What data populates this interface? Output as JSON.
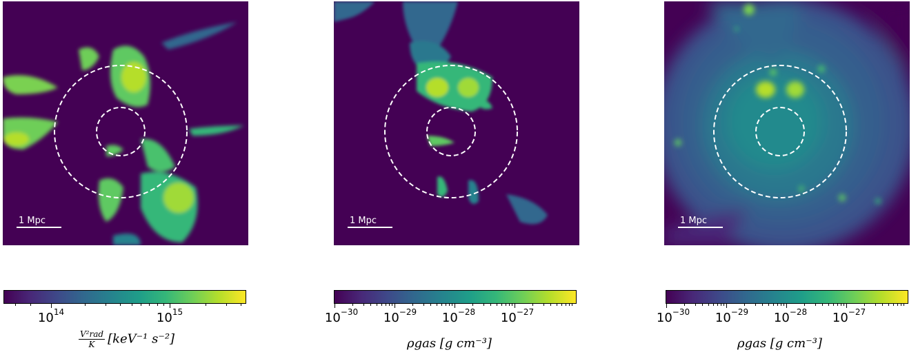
{
  "panels": [
    {
      "scalebar_label": "1 Mpc",
      "colorbar": {
        "ticks": [
          {
            "base": "10",
            "exp": "14"
          },
          {
            "base": "10",
            "exp": "15"
          }
        ],
        "label_frac_num": "V²rad",
        "label_frac_den": "K",
        "label_rest": "[keV⁻¹ s⁻²]"
      }
    },
    {
      "scalebar_label": "1 Mpc",
      "colorbar": {
        "ticks": [
          {
            "base": "10",
            "exp": "−30"
          },
          {
            "base": "10",
            "exp": "−29"
          },
          {
            "base": "10",
            "exp": "−28"
          },
          {
            "base": "10",
            "exp": "−27"
          }
        ],
        "label": "ρgas [g cm⁻³]"
      }
    },
    {
      "scalebar_label": "1 Mpc",
      "colorbar": {
        "ticks": [
          {
            "base": "10",
            "exp": "−30"
          },
          {
            "base": "10",
            "exp": "−29"
          },
          {
            "base": "10",
            "exp": "−28"
          },
          {
            "base": "10",
            "exp": "−27"
          }
        ],
        "label": "ρgas [g cm⁻³]"
      }
    }
  ],
  "chart_data": [
    {
      "type": "heatmap",
      "colormap": "viridis",
      "scale": "log",
      "colorbar_ticks": [
        100000000000000.0,
        1000000000000000.0
      ],
      "colorbar_range": [
        40000000000000.0,
        4500000000000000.0
      ],
      "colorbar_label": "V_rad^2 / K [keV^-1 s^-2]",
      "scalebar": "1 Mpc",
      "circles": "two dashed white circles (inner and outer radius)"
    },
    {
      "type": "heatmap",
      "colormap": "viridis",
      "scale": "log",
      "colorbar_ticks": [
        1e-30,
        1e-29,
        1e-28,
        1e-27
      ],
      "colorbar_range": [
        1e-30,
        8e-27
      ],
      "colorbar_label": "rho_gas [g cm^-3]",
      "scalebar": "1 Mpc",
      "circles": "two dashed white circles (inner and outer radius)"
    },
    {
      "type": "heatmap",
      "colormap": "viridis",
      "scale": "log",
      "colorbar_ticks": [
        1e-30,
        1e-29,
        1e-28,
        1e-27
      ],
      "colorbar_range": [
        1e-30,
        8e-27
      ],
      "colorbar_label": "rho_gas [g cm^-3]",
      "scalebar": "1 Mpc",
      "circles": "two dashed white circles (inner and outer radius)"
    }
  ]
}
